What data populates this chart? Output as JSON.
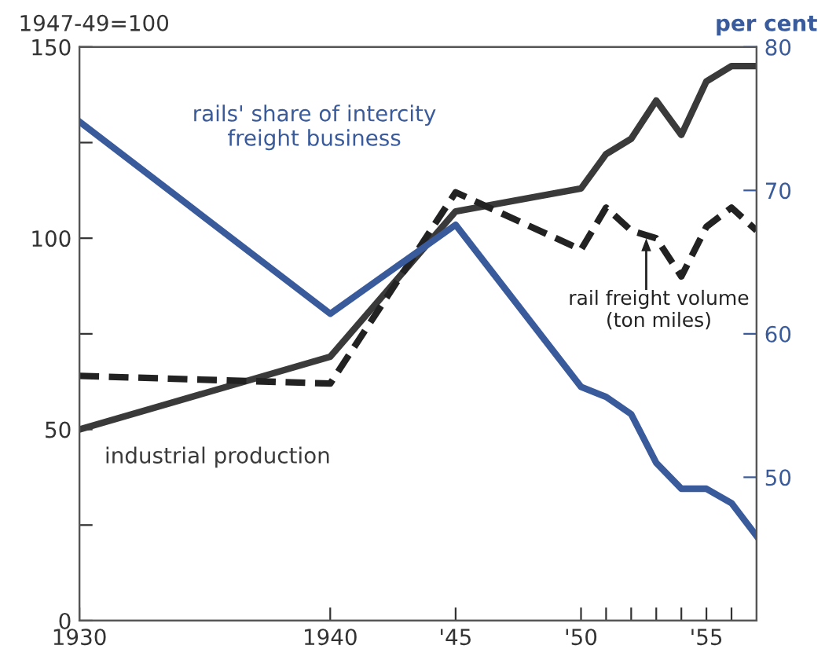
{
  "chart_data": {
    "type": "line",
    "ylabel": "1947-49=100",
    "y2label": "per cent",
    "xlim": [
      1930,
      1957
    ],
    "xticks": [
      {
        "value": 1930,
        "label": "1930"
      },
      {
        "value": 1940,
        "label": "1940"
      },
      {
        "value": 1945,
        "label": "'45"
      },
      {
        "value": 1950,
        "label": "'50"
      },
      {
        "value": 1951,
        "label": null
      },
      {
        "value": 1952,
        "label": null
      },
      {
        "value": 1953,
        "label": null
      },
      {
        "value": 1954,
        "label": null
      },
      {
        "value": 1955,
        "label": "'55"
      },
      {
        "value": 1956,
        "label": null
      }
    ],
    "ylim": [
      0,
      150
    ],
    "yticks": [
      0,
      {
        "value": 25,
        "label": null
      },
      50,
      {
        "value": 75,
        "label": null
      },
      100,
      {
        "value": 125,
        "label": null
      },
      150
    ],
    "y2lim": [
      40,
      80
    ],
    "y2ticks": [
      50,
      60,
      70,
      80
    ],
    "grid": false,
    "legend": false,
    "marker": "none",
    "series": [
      {
        "name": "industrial production",
        "color": "#3a3a3a",
        "line_style": "solid",
        "x": [
          1930,
          1940,
          1945,
          1950,
          1951,
          1952,
          1953,
          1954,
          1955,
          1956,
          1957
        ],
        "values": [
          50,
          69,
          107,
          113,
          122,
          126,
          136,
          127,
          141,
          145,
          145
        ]
      },
      {
        "name": "rail freight volume\n(ton miles)",
        "color": "#222222",
        "line_style": "dashed",
        "x": [
          1930,
          1940,
          1945,
          1950,
          1951,
          1952,
          1953,
          1954,
          1955,
          1956,
          1957
        ],
        "values": [
          64,
          62,
          112,
          97,
          108,
          102,
          100,
          90,
          103,
          108,
          102
        ]
      },
      {
        "name": "rails' share of intercity\nfreight business",
        "color": "#3a5b9b",
        "line_style": "solid",
        "axis": "y2",
        "x": [
          1930,
          1940,
          1945,
          1950,
          1951,
          1952,
          1953,
          1954,
          1955,
          1956,
          1957
        ],
        "values": [
          74.8,
          61.4,
          67.6,
          56.3,
          55.6,
          54.4,
          51,
          49.2,
          49.2,
          48.2,
          45.9
        ]
      }
    ]
  }
}
